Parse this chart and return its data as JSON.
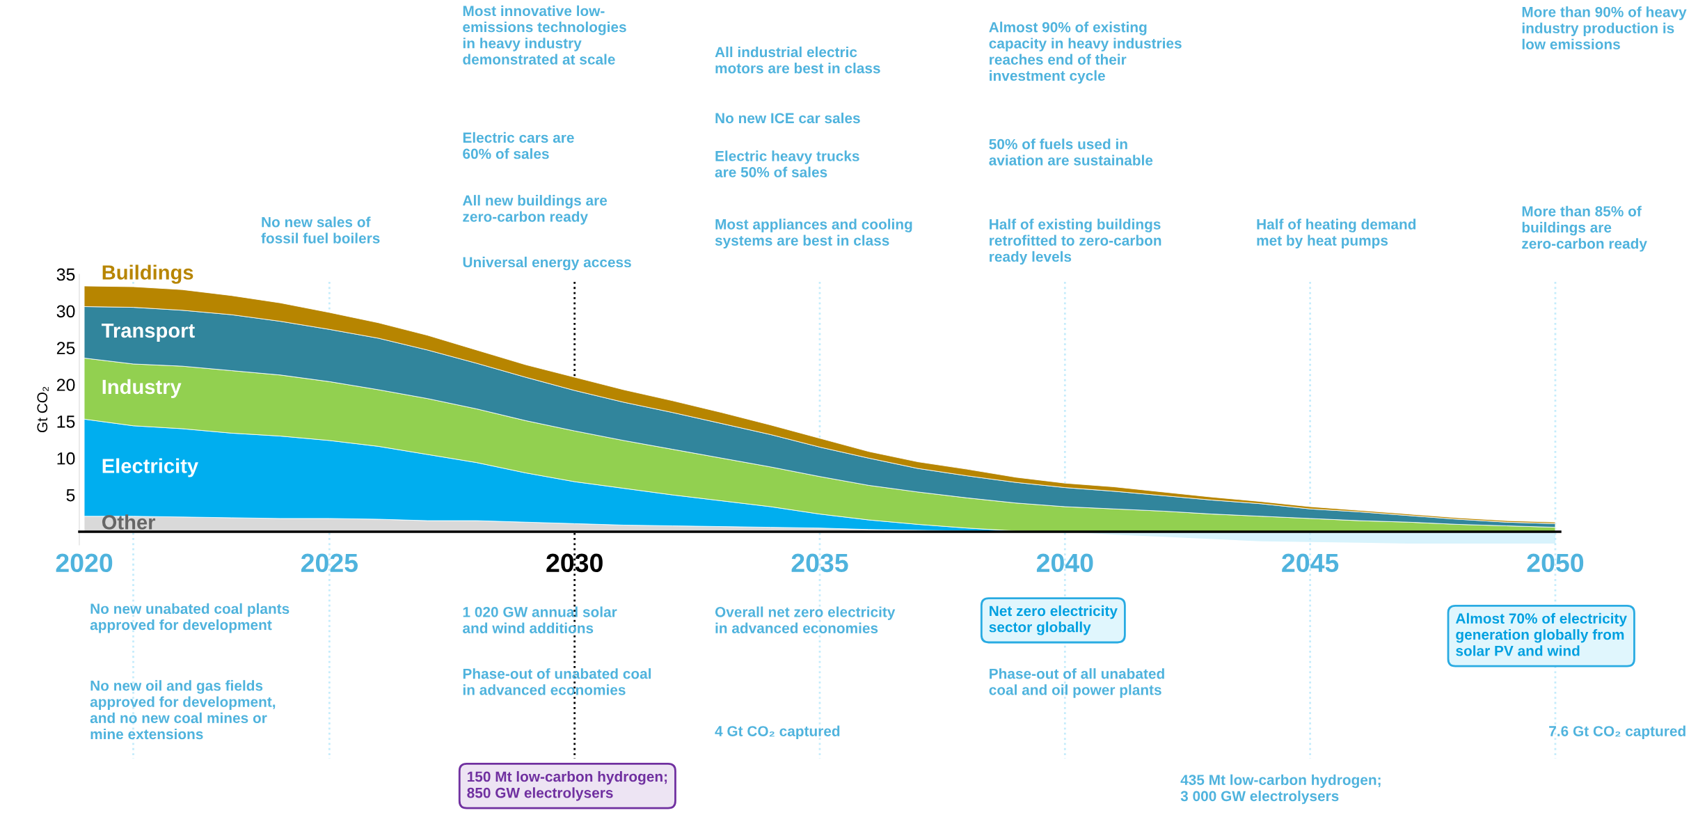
{
  "chart_data": [
    {
      "type": "area",
      "stacked": true,
      "ylabel": "Gt CO₂",
      "x": [
        2020,
        2021,
        2022,
        2023,
        2024,
        2025,
        2026,
        2027,
        2028,
        2029,
        2030,
        2031,
        2032,
        2033,
        2034,
        2035,
        2036,
        2037,
        2038,
        2039,
        2040,
        2041,
        2042,
        2043,
        2044,
        2045,
        2046,
        2047,
        2048,
        2049,
        2050
      ],
      "series": [
        {
          "name": "Other",
          "color": "#d9d9d9",
          "values": [
            2.1,
            2.1,
            2.0,
            1.9,
            1.8,
            1.8,
            1.7,
            1.5,
            1.5,
            1.3,
            1.1,
            0.9,
            0.8,
            0.7,
            0.6,
            0.5,
            0.3,
            0.2,
            0.1,
            0,
            0,
            0,
            0,
            0,
            0,
            0,
            0,
            0,
            0,
            0,
            0
          ]
        },
        {
          "name": "Electricity",
          "color": "#00aeef",
          "values": [
            13.2,
            12.3,
            12.0,
            11.5,
            11.2,
            10.6,
            9.9,
            9.0,
            7.9,
            6.7,
            5.7,
            5.0,
            4.2,
            3.5,
            2.8,
            1.9,
            1.3,
            0.8,
            0.4,
            0.1,
            0,
            0,
            0,
            0,
            0,
            0,
            0,
            0,
            0,
            0,
            0
          ]
        },
        {
          "name": "Industry",
          "color": "#92d050",
          "values": [
            8.3,
            8.4,
            8.5,
            8.5,
            8.3,
            8.0,
            7.7,
            7.6,
            7.3,
            7.1,
            6.9,
            6.5,
            6.2,
            5.8,
            5.4,
            5.1,
            4.7,
            4.4,
            4.1,
            3.8,
            3.4,
            3.1,
            2.8,
            2.4,
            2.1,
            1.8,
            1.5,
            1.3,
            1.0,
            0.8,
            0.6
          ]
        },
        {
          "name": "Transport",
          "color": "#31859c",
          "values": [
            7.0,
            7.7,
            7.6,
            7.6,
            7.3,
            7.1,
            7.0,
            6.6,
            6.2,
            5.9,
            5.5,
            5.2,
            5.0,
            4.7,
            4.4,
            4.0,
            3.7,
            3.2,
            3.0,
            2.8,
            2.6,
            2.4,
            2.1,
            1.9,
            1.7,
            1.3,
            1.2,
            0.9,
            0.7,
            0.5,
            0.5
          ]
        },
        {
          "name": "Buildings",
          "color": "#b78500",
          "values": [
            2.8,
            2.8,
            2.8,
            2.6,
            2.5,
            2.3,
            2.1,
            2.0,
            1.8,
            1.7,
            1.8,
            1.7,
            1.6,
            1.5,
            1.3,
            1.2,
            0.9,
            0.9,
            0.9,
            0.7,
            0.6,
            0.6,
            0.5,
            0.4,
            0.3,
            0.3,
            0.2,
            0.2,
            0.2,
            0.2,
            0.2
          ]
        }
      ],
      "xlim": [
        2019.9,
        2050.1
      ],
      "xticks": [
        2020,
        2025,
        2030,
        2035,
        2040,
        2045,
        2050
      ],
      "ylim": [
        -1.8,
        35
      ],
      "yticks": [
        5,
        10,
        15,
        20,
        25,
        30,
        35
      ],
      "grid": false,
      "legend": false,
      "ref_lines": [
        {
          "axis": "x",
          "value": 2021,
          "color": "#c5ecfb",
          "line_style": "dotted"
        },
        {
          "axis": "x",
          "value": 2025,
          "color": "#c5ecfb",
          "line_style": "dotted"
        },
        {
          "axis": "x",
          "value": 2030,
          "color": "#000000",
          "line_style": "dotted"
        },
        {
          "axis": "x",
          "value": 2035,
          "color": "#c5ecfb",
          "line_style": "dotted"
        },
        {
          "axis": "x",
          "value": 2040,
          "color": "#c5ecfb",
          "line_style": "dotted"
        },
        {
          "axis": "x",
          "value": 2045,
          "color": "#c5ecfb",
          "line_style": "dotted"
        },
        {
          "axis": "x",
          "value": 2050,
          "color": "#c5ecfb",
          "line_style": "dotted"
        }
      ],
      "annotations": [
        "No new sales of\nfossil fuel boilers",
        "Most innovative low-\nemissions technologies\nin heavy industry\ndemonstrated at scale",
        "Electric cars are\n60% of sales",
        "All new buildings are\nzero-carbon ready",
        "Universal energy access",
        "All industrial electric\nmotors are best in class",
        "No new ICE car sales",
        "Electric heavy trucks\nare 50% of sales",
        "Most appliances and cooling\nsystems are best in class",
        "Almost 90% of existing\ncapacity in heavy industries\nreaches end of their\ninvestment cycle",
        "50% of fuels used in\naviation are sustainable",
        "Half of existing buildings\nretrofitted to zero-carbon\nready levels",
        "Half of heating demand\nmet by heat pumps",
        "More than 90% of heavy\nindustry production is\nlow emissions",
        "More than 85% of\nbuildings are\nzero-carbon ready",
        "No new unabated coal plants\napproved for development",
        "No new oil and gas fields\napproved for development,\nand no new coal mines or\nmine extensions",
        "1 020 GW annual solar\nand wind additions",
        "Phase-out of unabated coal\nin advanced economies",
        "150 Mt low-carbon hydrogen;\n850 GW electrolysers",
        "Overall net zero electricity\nin advanced economies",
        "4 Gt CO₂ captured",
        "Net zero electricity\nsector globally",
        "Phase-out of all unabated\ncoal and oil power plants",
        "435 Mt low-carbon hydrogen;\n3 000 GW electrolysers",
        "Almost 70% of electricity\ngeneration globally from\nsolar PV and wind",
        "7.6 Gt CO₂ captured"
      ]
    },
    {
      "type": "area",
      "tick_labels": false,
      "x": [
        2020,
        2021,
        2022,
        2023,
        2024,
        2025,
        2026,
        2027,
        2028,
        2029,
        2030,
        2031,
        2032,
        2033,
        2034,
        2035,
        2036,
        2037,
        2038,
        2039,
        2040,
        2041,
        2042,
        2043,
        2044,
        2045,
        2046,
        2047,
        2048,
        2049,
        2050
      ],
      "series": [
        {
          "color": "#d8f3fc",
          "values": [
            0,
            0,
            0,
            0,
            0,
            0,
            0,
            0,
            0,
            0,
            0,
            0,
            0,
            0,
            0,
            0,
            0,
            0,
            0,
            0,
            0,
            -0.4,
            -0.7,
            -1.0,
            -1.3,
            -1.4,
            -1.5,
            -1.6,
            -1.6,
            -1.6,
            -1.6
          ]
        }
      ],
      "xlim": [
        2019.9,
        2050.1
      ],
      "ylim": [
        -1.8,
        35
      ]
    }
  ]
}
